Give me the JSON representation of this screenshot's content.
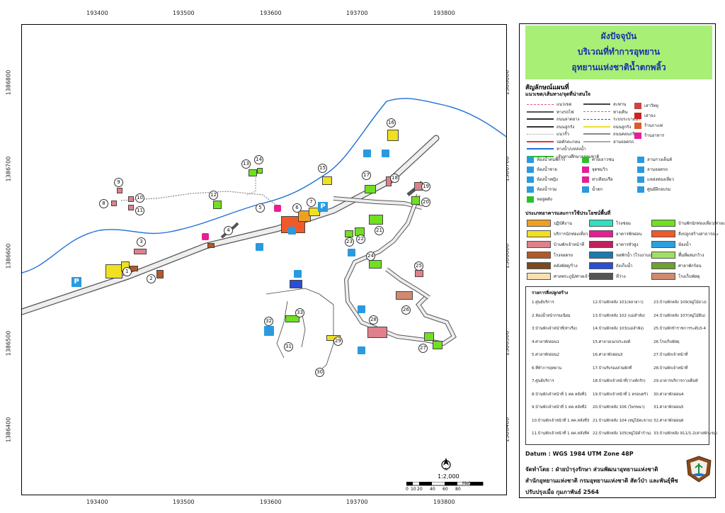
{
  "coords": {
    "top_x": [
      "193400",
      "193500",
      "193600",
      "193700",
      "193800"
    ],
    "bottom_x": [
      "193400",
      "193500",
      "193600",
      "193700",
      "193800"
    ],
    "left_y": [
      "1386800",
      "1386700",
      "1386600",
      "1386500",
      "1386400"
    ],
    "right_y": [
      "1386800",
      "1386700",
      "1386600",
      "1386500",
      "1386400"
    ]
  },
  "title": {
    "line1": "ผังปัจจุบัน",
    "line2": "บริเวณที่ทำการอุทยาน",
    "line3": "อุทยานแห่งชาติน้ำตกพลิ้ว"
  },
  "legend": {
    "heading": "สัญลักษณ์แผนที่",
    "sub_heading": "แนวเขต/เส้นทาง/จุดที่น่าสนใจ",
    "line_items_left": [
      {
        "label": "แนวเขต",
        "color": "#e05a7a",
        "style": "dashed"
      },
      {
        "label": "ทางรถไฟ",
        "color": "#555555",
        "style": "rail"
      },
      {
        "label": "ถนนลาดยาง",
        "color": "#333333",
        "style": "solid"
      },
      {
        "label": "ถนนลูกรัง",
        "color": "#333333",
        "style": "solid"
      },
      {
        "label": "แนวรั้ว",
        "color": "#999999",
        "style": "dotted"
      },
      {
        "label": "บ่อดักตะกอน",
        "color": "#e63333",
        "style": "solid"
      },
      {
        "label": "ทางน้ำ/แหล่งน้ำ",
        "color": "#1e6fd6",
        "style": "solid"
      },
      {
        "label": "เส้นทางศึกษาธรรมชาติ",
        "color": "#2cc02c",
        "style": "solid"
      }
    ],
    "line_items_mid": [
      {
        "label": "สะพาน",
        "color": "#444444",
        "style": "solid"
      },
      {
        "label": "ทางเดิน",
        "color": "#e05a7a",
        "style": "dashed"
      },
      {
        "label": "ระบบระบายน้ำ",
        "color": "#2a4fd6",
        "style": "dashdot"
      },
      {
        "label": "ถนนลูกรัง",
        "color": "#f0e030",
        "style": "solid"
      },
      {
        "label": "ถนนคอนกรีต",
        "color": "#888888",
        "style": "solid"
      },
      {
        "label": "ลานจอดรถ",
        "color": "#aaaaaa",
        "style": "solid"
      }
    ],
    "icon_items": [
      {
        "label": "เสาวิทยุ",
        "color": "#cc4444"
      },
      {
        "label": "เสาธง",
        "color": "#cc2222"
      },
      {
        "label": "ร้านกาแฟ",
        "color": "#e05a2a"
      },
      {
        "label": "ร้านอาหาร",
        "color": "#e61e96"
      },
      {
        "label": "ห้องน้ำคนพิการ",
        "color": "#2a9ae0"
      },
      {
        "label": "ค่ายเยาวชน",
        "color": "#2cc02c"
      },
      {
        "label": "ลานกางเต็นท์",
        "color": "#2a9ae0"
      },
      {
        "label": "ห้องน้ำชาย",
        "color": "#2a9ae0"
      },
      {
        "label": "จุดชมวิว",
        "color": "#e61e96"
      },
      {
        "label": "ลานจอดรถ",
        "color": "#2a9ae0"
      },
      {
        "label": "ห้องน้ำหญิง",
        "color": "#2a9ae0"
      },
      {
        "label": "ท่าเทียบเรือ",
        "color": "#e61e96"
      },
      {
        "label": "แหล่งท่องเที่ยว",
        "color": "#2a9ae0"
      },
      {
        "label": "ห้องน้ำรวม",
        "color": "#2a9ae0"
      },
      {
        "label": "น้ำตก",
        "color": "#2a9ae0"
      },
      {
        "label": "ศูนย์ฝึกอบรม",
        "color": "#2a9ae0"
      },
      {
        "label": "หอสูดดัง",
        "color": "#2cc02c"
      }
    ],
    "building_type_heading": "ประเภทอาคารและการใช้ประโยชน์พื้นที่",
    "building_types": [
      {
        "label": "ปฏิบัติงาน",
        "color": "#f0a020"
      },
      {
        "label": "บริการนักท่องเที่ยว",
        "color": "#f0e020"
      },
      {
        "label": "บ้านพักเจ้าหน้าที่",
        "color": "#e0808a"
      },
      {
        "label": "โรงจอดรถ",
        "color": "#b05a28"
      },
      {
        "label": "คลังพัสดุ/ร้าง",
        "color": "#7a4a20"
      },
      {
        "label": "ศาลพระภูมิ/ศาลเจ้าที่",
        "color": "#f8e0b0"
      },
      {
        "label": "โรงซ่อม",
        "color": "#30e0c0"
      },
      {
        "label": "อาคารพักผ่อน",
        "color": "#e61e96"
      },
      {
        "label": "อาคารหัวสูง",
        "color": "#c02060"
      },
      {
        "label": "หอพักน้ำ (โรงงานประปา)",
        "color": "#1a7ab0"
      },
      {
        "label": "ถังเก็บน้ำ",
        "color": "#2a4fd6"
      },
      {
        "label": "ที่ว่าง",
        "color": "#555555"
      },
      {
        "label": "บ้านพักนักท่องเที่ยว/ค่ายเยาวชน",
        "color": "#70e020"
      },
      {
        "label": "สิ่งปลูกสร้างสาธารณะ",
        "color": "#f05a28"
      },
      {
        "label": "ห้องน้ำ",
        "color": "#2aa0e0"
      },
      {
        "label": "พื้นที่ผสมกว้าง",
        "color": "#a0e060"
      },
      {
        "label": "ศาลาพักร้อน",
        "color": "#70a030"
      },
      {
        "label": "โรงเก็บพัสดุ",
        "color": "#d08a70"
      }
    ]
  },
  "poi": {
    "heading": "รายการสิ่งปลูกสร้าง",
    "col1": [
      "1.ศูนย์บริการ",
      "2.ห้องน้ำหน้ากรมเนียม",
      "3.บ้านพักเจ้าหน้าที่(ท่าเรือ)",
      "4.ศาลาพักผ่อน1",
      "5.ศาลาพักผ่อน2",
      "6.ที่ทำการอุทยาน",
      "7.ศูนย์บริการ",
      "8.บ้านพักเจ้าหน้าที่ 1 คค.หลังที่1",
      "9.บ้านพักเจ้าหน้าที่ 1 คค.หลังที่2",
      "10.บ้านพักเจ้าหน้าที่ 1 คค.หลังที่3",
      "11.บ้านพักเจ้าหน้าที่ 1 คค.หลังที่4"
    ],
    "col2": [
      "12.บ้านพักหลัง 101(หลายาว)",
      "13.บ้านพักหลัง 102 (แม่ลำพัง)",
      "14.บ้านพักหลัง 103(แม่ลำพัง)",
      "15.ศาลาอเนกประสงค์",
      "16.ศาลาพักผ่อน3",
      "17.บ้านรับรองส่วนพักที่",
      "18.บ้านพักเจ้าหน้าที่(ว่างพักรัก)",
      "19.บ้านพักเจ้าหน้าที่ 1 ครอบครัว",
      "20.บ้านพักหลัง 106 (ไพรพนา)",
      "21.บ้านพักหลัง 104 (หมู่ไม้ตะขาบ)",
      "22.บ้านพักหลัง 105(หมู่ไม้ดำก้าน)"
    ],
    "col3": [
      "23.บ้านพักหลัง 109(หมู่ไม้ยาง)",
      "24.บ้านพักหลัง 107(หมู่ไม้ดิน)",
      "25.บ้านพักข้าราชการระดับ3-4",
      "26.โรงเก็บพัสดุ",
      "27.บ้านพักเจ้าหน้าที่",
      "28.บ้านพักเจ้าหน้าที่",
      "29.อาคารบริการกางเต็นท์",
      "30.ศาลาพักผ่อน4",
      "31.ศาลาพักผ่อน5",
      "32.ศาลาพักผ่อน6",
      "33.บ้านพักหลัง 911/1-2(ค่ายพักแรม)"
    ]
  },
  "footer": {
    "datum": "Datum  :  WGS 1984 UTM Zone 48P",
    "made_by": "จัดทำโดย  : ฝ่ายบำรุงรักษา ส่วนพัฒนาอุทยานแห่งชาติ",
    "agency": "สำนักอุทยานแห่งชาติ  กรมอุทยานแห่งชาติ สัตว์ป่า และพันธุ์พืช",
    "updated": "ปรับปรุงเมื่อ กุมภาพันธ์ 2564"
  },
  "scale": {
    "ratio": "1:2,000",
    "ticks": [
      "0",
      "10",
      "20",
      "40",
      "60",
      "80"
    ],
    "unit": "Meters"
  },
  "map": {
    "parking_label": "P",
    "poi_numbers": [
      "1",
      "2",
      "3",
      "4",
      "5",
      "6",
      "7",
      "8",
      "9",
      "10",
      "11",
      "12",
      "13",
      "14",
      "15",
      "16",
      "17",
      "18",
      "19",
      "20",
      "21",
      "22",
      "23",
      "24",
      "25",
      "26",
      "27",
      "28",
      "29",
      "30",
      "31",
      "32",
      "33"
    ]
  }
}
